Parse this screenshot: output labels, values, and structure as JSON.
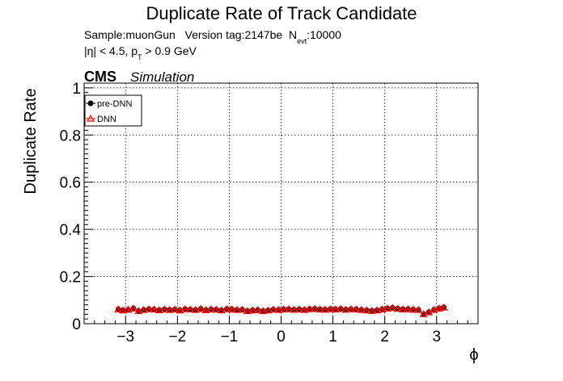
{
  "chart_data": {
    "type": "scatter",
    "title": "Duplicate Rate of Track Candidate",
    "info_line1": {
      "prefix": "Sample:muonGun   Version tag:2147be  N",
      "sub": "evt",
      "suffix": ":10000"
    },
    "info_line2": {
      "prefix": "|η| < 4.5, p",
      "sub": "T",
      "suffix": " > 0.9 GeV"
    },
    "cms_label": "CMS",
    "simulation_label": "Simulation",
    "xlabel": "ϕ",
    "ylabel": "Duplicate Rate",
    "xlim": [
      -3.8,
      3.8
    ],
    "ylim": [
      0,
      1.02
    ],
    "xticks": [
      -3,
      -2,
      -1,
      0,
      1,
      2,
      3
    ],
    "xtick_labels": [
      "−3",
      "−2",
      "−1",
      "0",
      "1",
      "2",
      "3"
    ],
    "yticks": [
      0,
      0.2,
      0.4,
      0.6,
      0.8,
      1
    ],
    "ytick_labels": [
      "0",
      "0.2",
      "0.4",
      "0.6",
      "0.8",
      "1"
    ],
    "grid": true,
    "legend_position": "top-left",
    "x": [
      -3.14,
      -3.05,
      -2.95,
      -2.85,
      -2.75,
      -2.65,
      -2.55,
      -2.45,
      -2.35,
      -2.25,
      -2.15,
      -2.05,
      -1.95,
      -1.85,
      -1.75,
      -1.65,
      -1.55,
      -1.45,
      -1.35,
      -1.25,
      -1.15,
      -1.05,
      -0.95,
      -0.85,
      -0.75,
      -0.65,
      -0.55,
      -0.45,
      -0.35,
      -0.25,
      -0.15,
      -0.05,
      0.05,
      0.15,
      0.25,
      0.35,
      0.45,
      0.55,
      0.65,
      0.75,
      0.85,
      0.95,
      1.05,
      1.15,
      1.25,
      1.35,
      1.45,
      1.55,
      1.65,
      1.75,
      1.85,
      1.95,
      2.05,
      2.15,
      2.25,
      2.35,
      2.45,
      2.55,
      2.65,
      2.75,
      2.85,
      2.95,
      3.05,
      3.14
    ],
    "series": [
      {
        "name": "pre-DNN",
        "color": "#000000",
        "marker": "circle",
        "values": [
          0.062,
          0.058,
          0.06,
          0.066,
          0.055,
          0.06,
          0.063,
          0.061,
          0.059,
          0.062,
          0.06,
          0.061,
          0.058,
          0.063,
          0.061,
          0.06,
          0.064,
          0.059,
          0.062,
          0.061,
          0.058,
          0.063,
          0.062,
          0.06,
          0.061,
          0.055,
          0.058,
          0.059,
          0.055,
          0.058,
          0.061,
          0.06,
          0.062,
          0.063,
          0.061,
          0.062,
          0.06,
          0.063,
          0.064,
          0.062,
          0.061,
          0.063,
          0.062,
          0.064,
          0.061,
          0.063,
          0.062,
          0.06,
          0.058,
          0.056,
          0.058,
          0.062,
          0.066,
          0.068,
          0.065,
          0.062,
          0.063,
          0.061,
          0.06,
          0.042,
          0.05,
          0.06,
          0.066,
          0.07
        ]
      },
      {
        "name": "DNN",
        "color": "#ff0000",
        "marker": "triangle-open",
        "values": [
          0.06,
          0.056,
          0.059,
          0.064,
          0.053,
          0.058,
          0.061,
          0.06,
          0.057,
          0.06,
          0.058,
          0.06,
          0.056,
          0.061,
          0.06,
          0.058,
          0.062,
          0.057,
          0.06,
          0.059,
          0.056,
          0.061,
          0.06,
          0.058,
          0.059,
          0.053,
          0.056,
          0.057,
          0.053,
          0.056,
          0.059,
          0.058,
          0.06,
          0.061,
          0.059,
          0.06,
          0.058,
          0.061,
          0.062,
          0.06,
          0.059,
          0.061,
          0.06,
          0.062,
          0.059,
          0.061,
          0.06,
          0.058,
          0.056,
          0.054,
          0.056,
          0.06,
          0.064,
          0.066,
          0.063,
          0.06,
          0.061,
          0.059,
          0.058,
          0.04,
          0.048,
          0.058,
          0.064,
          0.068
        ]
      }
    ]
  }
}
